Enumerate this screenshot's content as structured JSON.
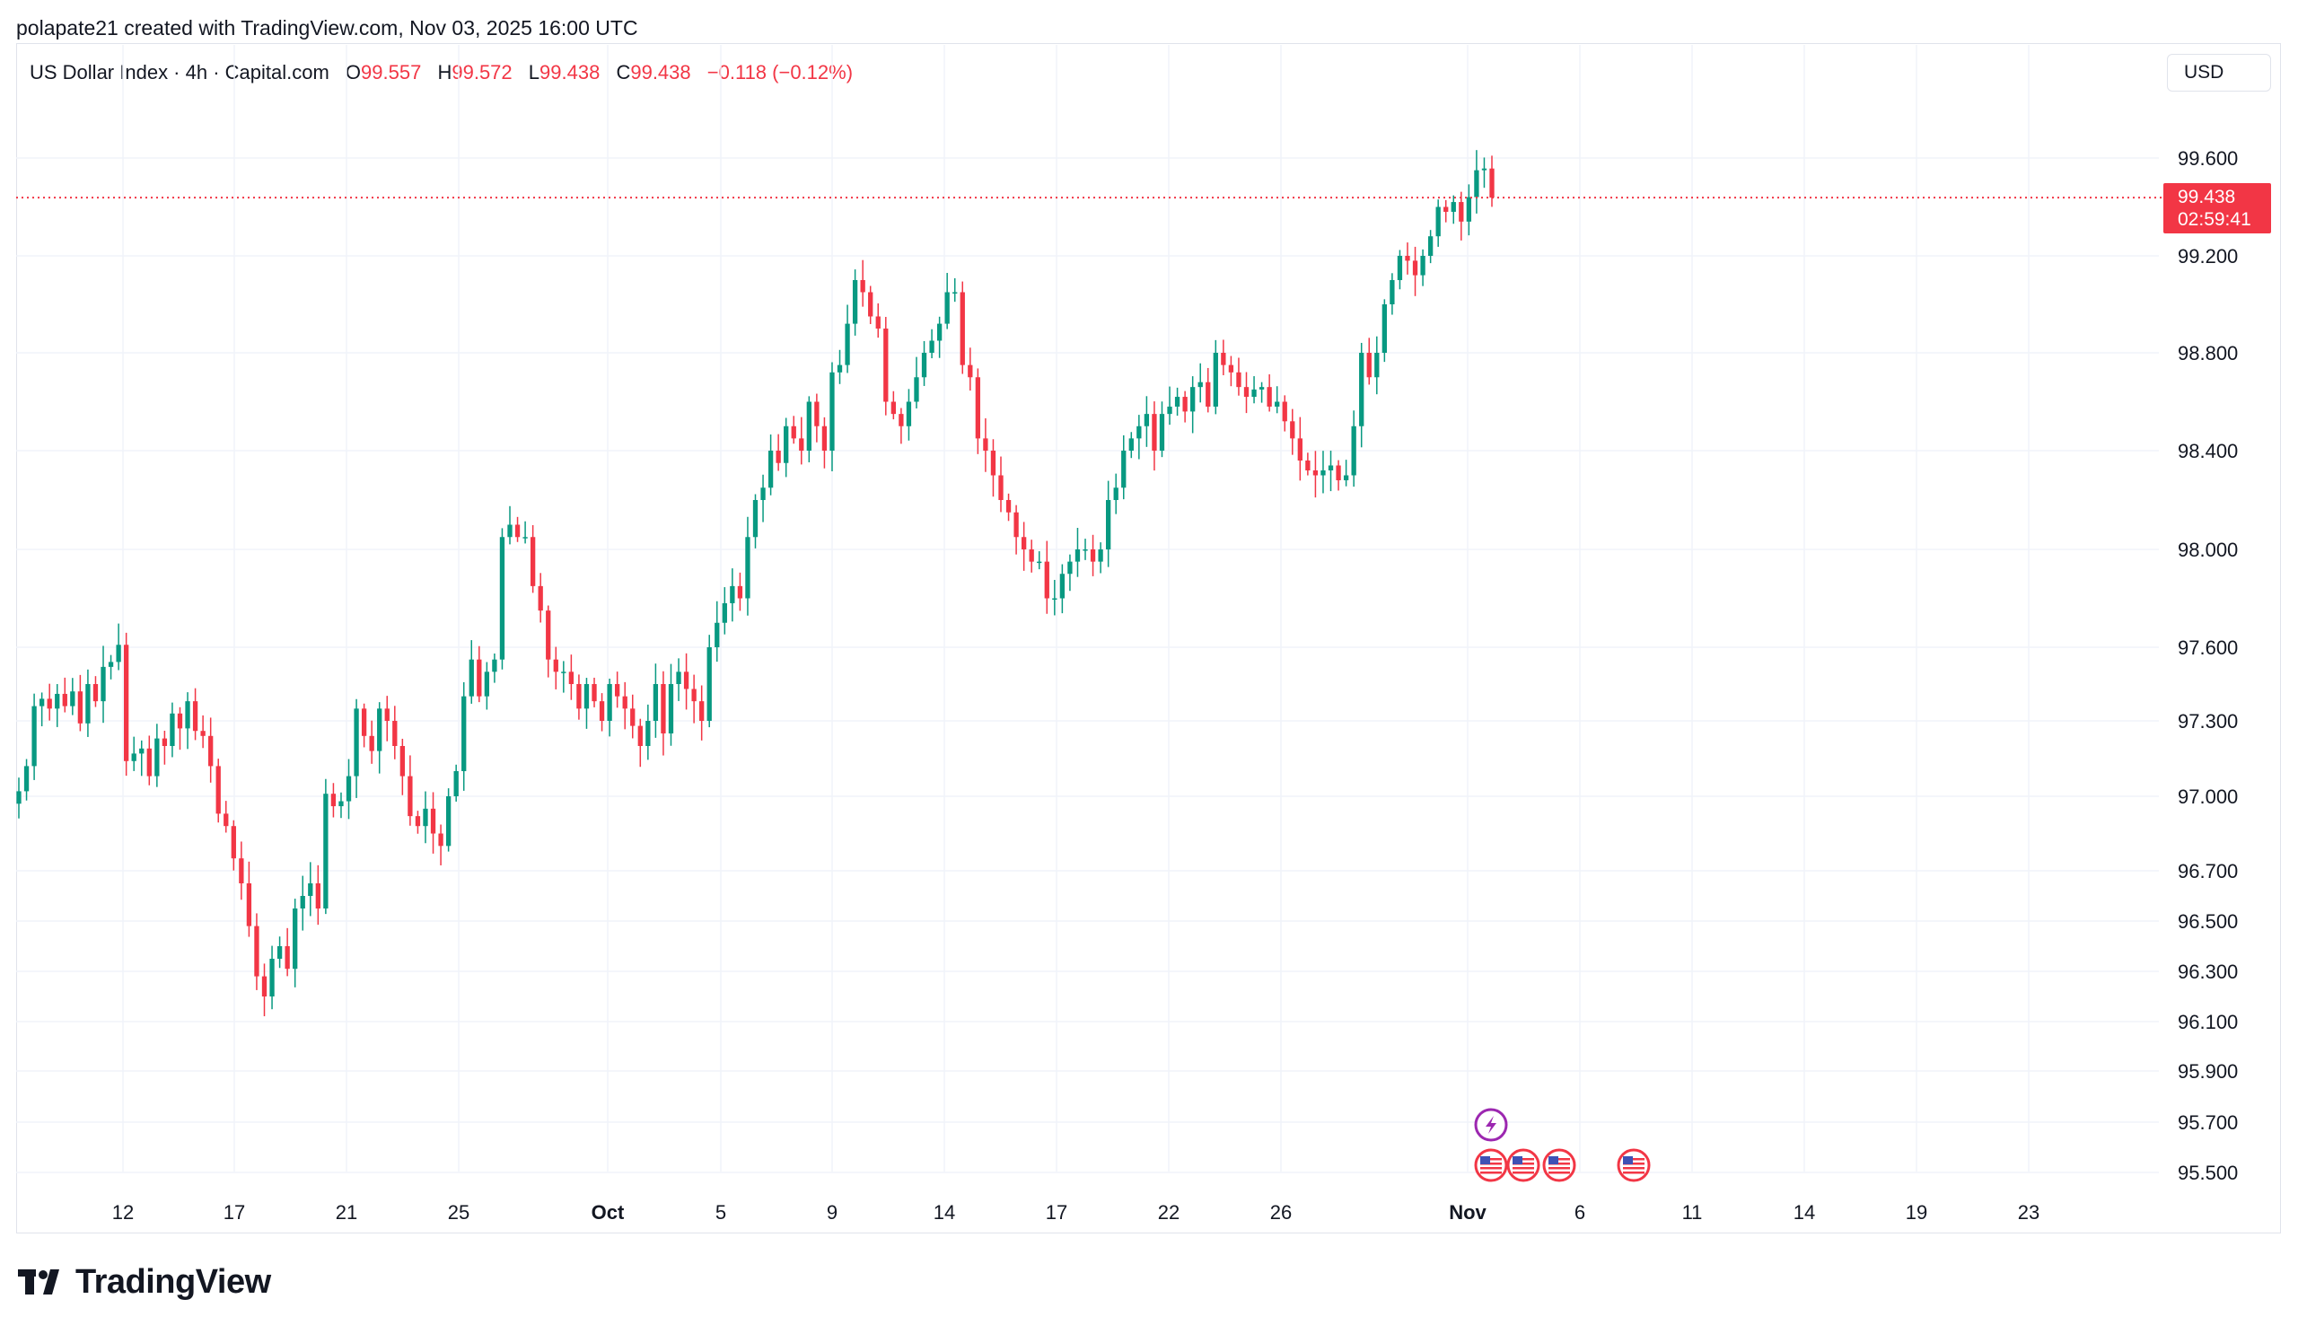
{
  "credit_line": "polapate21 created with TradingView.com, Nov 03, 2025 16:00 UTC",
  "legend": {
    "symbol": "US Dollar Index · 4h · Capital.com",
    "open_label": "O",
    "open": "99.557",
    "high_label": "H",
    "high": "99.572",
    "low_label": "L",
    "low": "99.438",
    "close_label": "C",
    "close": "99.438",
    "change": "−0.118 (−0.12%)"
  },
  "currency_button": "USD",
  "last_price": {
    "price": "99.438",
    "countdown": "02:59:41"
  },
  "brand": "TradingView",
  "colors": {
    "up": "#089981",
    "down": "#f23645",
    "grid": "#f0f3fa",
    "event": "#9c27b0"
  },
  "event_icons": [
    "lightning-event-icon",
    "us-flag-icon",
    "us-flag-icon",
    "us-flag-icon",
    "us-flag-icon"
  ],
  "chart_data": {
    "type": "candlestick",
    "interval": "4h",
    "y_tick_labels": [
      "99.600",
      "99.200",
      "98.800",
      "98.400",
      "98.000",
      "97.600",
      "97.300",
      "97.000",
      "96.700",
      "96.500",
      "96.300",
      "96.100",
      "95.900",
      "95.700",
      "95.500"
    ],
    "x_tick_labels": [
      "12",
      "17",
      "21",
      "25",
      "Oct",
      "5",
      "9",
      "14",
      "17",
      "22",
      "26",
      "Nov",
      "6",
      "11",
      "14",
      "19",
      "23"
    ],
    "grid": true,
    "last_price_line": 99.438,
    "closes": [
      97.02,
      97.12,
      97.36,
      97.39,
      97.35,
      97.41,
      97.36,
      97.42,
      97.29,
      97.45,
      97.38,
      97.52,
      97.54,
      97.61,
      97.14,
      97.17,
      97.19,
      97.08,
      97.23,
      97.2,
      97.33,
      97.27,
      97.38,
      97.26,
      97.24,
      97.12,
      96.93,
      96.88,
      96.75,
      96.65,
      96.48,
      96.28,
      96.2,
      96.35,
      96.4,
      96.31,
      96.55,
      96.6,
      96.65,
      96.55,
      97.01,
      96.96,
      96.98,
      97.08,
      97.35,
      97.24,
      97.18,
      97.35,
      97.3,
      97.2,
      97.08,
      96.92,
      96.88,
      96.95,
      96.85,
      96.8,
      97.0,
      97.1,
      97.4,
      97.55,
      97.4,
      97.5,
      97.55,
      98.05,
      98.1,
      98.05,
      98.05,
      97.85,
      97.75,
      97.55,
      97.5,
      97.5,
      97.45,
      97.35,
      97.45,
      97.38,
      97.3,
      97.45,
      97.4,
      97.35,
      97.28,
      97.2,
      97.3,
      97.45,
      97.25,
      97.45,
      97.5,
      97.43,
      97.38,
      97.3,
      97.6,
      97.7,
      97.78,
      97.85,
      97.8,
      98.05,
      98.2,
      98.25,
      98.4,
      98.35,
      98.5,
      98.45,
      98.4,
      98.6,
      98.5,
      98.4,
      98.72,
      98.75,
      98.92,
      99.1,
      99.05,
      98.95,
      98.9,
      98.6,
      98.55,
      98.5,
      98.6,
      98.7,
      98.8,
      98.85,
      98.92,
      99.05,
      99.05,
      98.75,
      98.7,
      98.45,
      98.4,
      98.3,
      98.2,
      98.15,
      98.05,
      98.0,
      97.95,
      97.95,
      97.8,
      97.8,
      97.9,
      97.95,
      98.0,
      98.0,
      97.95,
      98.0,
      98.2,
      98.25,
      98.4,
      98.45,
      98.5,
      98.55,
      98.4,
      98.55,
      98.58,
      98.62,
      98.56,
      98.66,
      98.68,
      98.58,
      98.8,
      98.75,
      98.72,
      98.66,
      98.62,
      98.65,
      98.66,
      98.58,
      98.6,
      98.52,
      98.45,
      98.36,
      98.32,
      98.3,
      98.32,
      98.34,
      98.28,
      98.3,
      98.5,
      98.8,
      98.7,
      98.8,
      99.0,
      99.1,
      99.2,
      99.18,
      99.12,
      99.2,
      99.28,
      99.4,
      99.38,
      99.42,
      99.34,
      99.44,
      99.55,
      99.557,
      99.438
    ]
  }
}
